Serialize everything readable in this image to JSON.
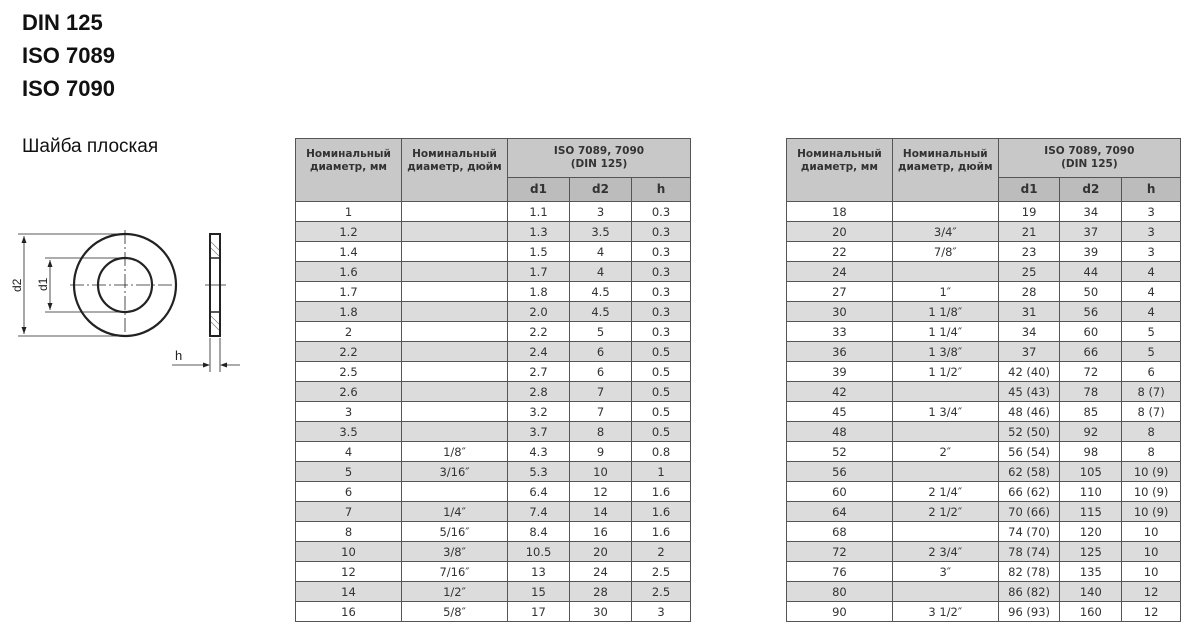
{
  "standards": [
    "DIN 125",
    "ISO 7089",
    "ISO 7090"
  ],
  "subtitle": "Шайба плоская",
  "drawing": {
    "label_d2": "d2",
    "label_d1": "d1",
    "label_h": "h"
  },
  "table_headers": {
    "nominal_mm": "Номинальный диаметр, мм",
    "nominal_inch": "Номинальный диаметр, дюйм",
    "group_line1": "ISO 7089, 7090",
    "group_line2": "(DIN 125)",
    "d1": "d1",
    "d2": "d2",
    "h": "h"
  },
  "tables": [
    {
      "rows": [
        [
          "1",
          "",
          "1.1",
          "3",
          "0.3"
        ],
        [
          "1.2",
          "",
          "1.3",
          "3.5",
          "0.3"
        ],
        [
          "1.4",
          "",
          "1.5",
          "4",
          "0.3"
        ],
        [
          "1.6",
          "",
          "1.7",
          "4",
          "0.3"
        ],
        [
          "1.7",
          "",
          "1.8",
          "4.5",
          "0.3"
        ],
        [
          "1.8",
          "",
          "2.0",
          "4.5",
          "0.3"
        ],
        [
          "2",
          "",
          "2.2",
          "5",
          "0.3"
        ],
        [
          "2.2",
          "",
          "2.4",
          "6",
          "0.5"
        ],
        [
          "2.5",
          "",
          "2.7",
          "6",
          "0.5"
        ],
        [
          "2.6",
          "",
          "2.8",
          "7",
          "0.5"
        ],
        [
          "3",
          "",
          "3.2",
          "7",
          "0.5"
        ],
        [
          "3.5",
          "",
          "3.7",
          "8",
          "0.5"
        ],
        [
          "4",
          "1/8″",
          "4.3",
          "9",
          "0.8"
        ],
        [
          "5",
          "3/16″",
          "5.3",
          "10",
          "1"
        ],
        [
          "6",
          "",
          "6.4",
          "12",
          "1.6"
        ],
        [
          "7",
          "1/4″",
          "7.4",
          "14",
          "1.6"
        ],
        [
          "8",
          "5/16″",
          "8.4",
          "16",
          "1.6"
        ],
        [
          "10",
          "3/8″",
          "10.5",
          "20",
          "2"
        ],
        [
          "12",
          "7/16″",
          "13",
          "24",
          "2.5"
        ],
        [
          "14",
          "1/2″",
          "15",
          "28",
          "2.5"
        ],
        [
          "16",
          "5/8″",
          "17",
          "30",
          "3"
        ]
      ]
    },
    {
      "rows": [
        [
          "18",
          "",
          "19",
          "34",
          "3"
        ],
        [
          "20",
          "3/4″",
          "21",
          "37",
          "3"
        ],
        [
          "22",
          "7/8″",
          "23",
          "39",
          "3"
        ],
        [
          "24",
          "",
          "25",
          "44",
          "4"
        ],
        [
          "27",
          "1″",
          "28",
          "50",
          "4"
        ],
        [
          "30",
          "1 1/8″",
          "31",
          "56",
          "4"
        ],
        [
          "33",
          "1 1/4″",
          "34",
          "60",
          "5"
        ],
        [
          "36",
          "1 3/8″",
          "37",
          "66",
          "5"
        ],
        [
          "39",
          "1 1/2″",
          "42 (40)",
          "72",
          "6"
        ],
        [
          "42",
          "",
          "45 (43)",
          "78",
          "8 (7)"
        ],
        [
          "45",
          "1 3/4″",
          "48 (46)",
          "85",
          "8 (7)"
        ],
        [
          "48",
          "",
          "52 (50)",
          "92",
          "8"
        ],
        [
          "52",
          "2″",
          "56 (54)",
          "98",
          "8"
        ],
        [
          "56",
          "",
          "62 (58)",
          "105",
          "10 (9)"
        ],
        [
          "60",
          "2 1/4″",
          "66 (62)",
          "110",
          "10 (9)"
        ],
        [
          "64",
          "2 1/2″",
          "70 (66)",
          "115",
          "10 (9)"
        ],
        [
          "68",
          "",
          "74 (70)",
          "120",
          "10"
        ],
        [
          "72",
          "2 3/4″",
          "78 (74)",
          "125",
          "10"
        ],
        [
          "76",
          "3″",
          "82 (78)",
          "135",
          "10"
        ],
        [
          "80",
          "",
          "86 (82)",
          "140",
          "12"
        ],
        [
          "90",
          "3 1/2″",
          "96 (93)",
          "160",
          "12"
        ]
      ]
    }
  ]
}
